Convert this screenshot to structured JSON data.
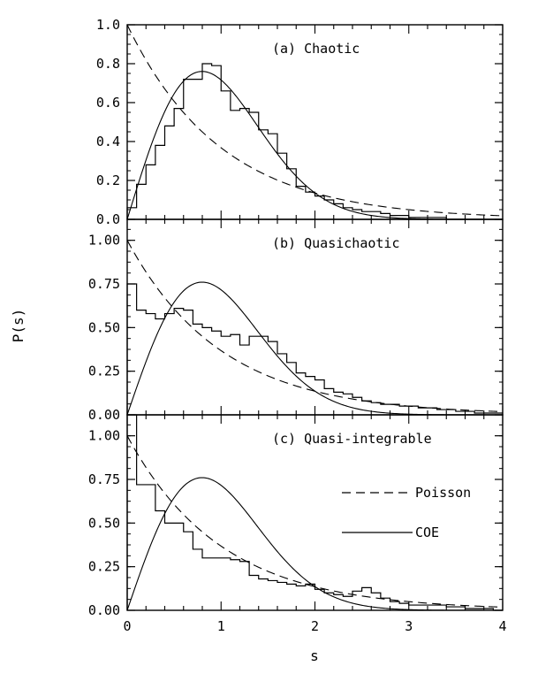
{
  "chart_data": {
    "type": "line",
    "ylabel": "P(s)",
    "xlabel": "s",
    "xlim": [
      0,
      4
    ],
    "x_ticks": [
      "0",
      "1",
      "2",
      "3",
      "4"
    ],
    "legend": {
      "placement": "panel-c right",
      "entries": [
        {
          "name": "Poisson",
          "style": "dashed"
        },
        {
          "name": "COE",
          "style": "solid"
        }
      ]
    },
    "panels": [
      {
        "label": "(a) Chaotic",
        "ylim": [
          0,
          1.0
        ],
        "y_ticks": [
          {
            "value": 0.0,
            "text": "0.0"
          },
          {
            "value": 0.2,
            "text": "0.2"
          },
          {
            "value": 0.4,
            "text": "0.4"
          },
          {
            "value": 0.6,
            "text": "0.6"
          },
          {
            "value": 0.8,
            "text": "0.8"
          },
          {
            "value": 1.0,
            "text": "1.0"
          }
        ],
        "histogram": {
          "bin_width": 0.1,
          "x_start": 0,
          "values": [
            0.06,
            0.18,
            0.28,
            0.38,
            0.48,
            0.57,
            0.72,
            0.72,
            0.8,
            0.79,
            0.66,
            0.56,
            0.57,
            0.55,
            0.46,
            0.44,
            0.34,
            0.26,
            0.17,
            0.14,
            0.12,
            0.1,
            0.08,
            0.06,
            0.05,
            0.04,
            0.04,
            0.03,
            0.02,
            0.02,
            0.01,
            0.01,
            0.01,
            0.01,
            0.0,
            0.0,
            0.0,
            0.0,
            0.0,
            0.0
          ]
        }
      },
      {
        "label": "(b) Quasichaotic",
        "ylim": [
          0,
          1.12
        ],
        "y_ticks": [
          {
            "value": 0.0,
            "text": "0.00"
          },
          {
            "value": 0.25,
            "text": "0.25"
          },
          {
            "value": 0.5,
            "text": "0.50"
          },
          {
            "value": 0.75,
            "text": "0.75"
          },
          {
            "value": 1.0,
            "text": "1.00"
          }
        ],
        "histogram": {
          "bin_width": 0.1,
          "x_start": 0,
          "values": [
            0.75,
            0.6,
            0.58,
            0.55,
            0.58,
            0.61,
            0.6,
            0.52,
            0.5,
            0.48,
            0.45,
            0.46,
            0.4,
            0.45,
            0.45,
            0.42,
            0.35,
            0.3,
            0.24,
            0.22,
            0.2,
            0.15,
            0.13,
            0.12,
            0.1,
            0.08,
            0.07,
            0.06,
            0.06,
            0.05,
            0.05,
            0.04,
            0.04,
            0.03,
            0.03,
            0.02,
            0.02,
            0.01,
            0.01,
            0.01
          ]
        }
      },
      {
        "label": "(c) Quasi-integrable",
        "ylim": [
          0,
          1.12
        ],
        "y_ticks": [
          {
            "value": 0.0,
            "text": "0.00"
          },
          {
            "value": 0.25,
            "text": "0.25"
          },
          {
            "value": 0.5,
            "text": "0.50"
          },
          {
            "value": 0.75,
            "text": "0.75"
          },
          {
            "value": 1.0,
            "text": "1.00"
          }
        ],
        "histogram": {
          "bin_width": 0.1,
          "x_start": 0,
          "values": [
            1.12,
            0.72,
            0.72,
            0.57,
            0.5,
            0.5,
            0.45,
            0.35,
            0.3,
            0.3,
            0.3,
            0.29,
            0.28,
            0.2,
            0.18,
            0.17,
            0.16,
            0.15,
            0.14,
            0.15,
            0.12,
            0.1,
            0.09,
            0.08,
            0.11,
            0.13,
            0.1,
            0.07,
            0.05,
            0.04,
            0.03,
            0.03,
            0.03,
            0.03,
            0.02,
            0.02,
            0.01,
            0.01,
            0.01,
            0.0
          ]
        }
      }
    ],
    "series": [
      {
        "name": "Poisson",
        "formula": "exp(-s)",
        "style": "dashed"
      },
      {
        "name": "COE",
        "formula": "(pi/2) s exp(-pi s^2 / 4)",
        "style": "solid"
      }
    ]
  }
}
